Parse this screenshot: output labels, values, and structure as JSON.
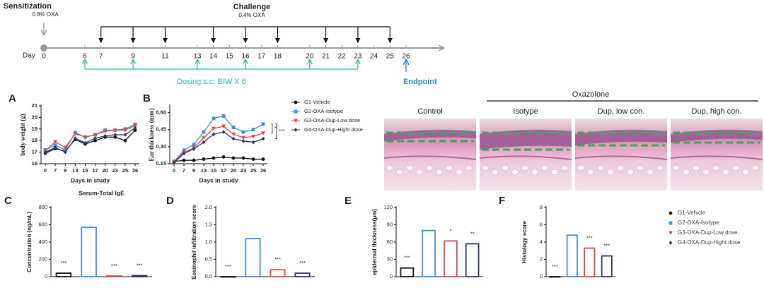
{
  "timeline": {
    "sensitization": "Sensitization",
    "sensitization_dose": "0.8% OXA",
    "challenge": "Challenge",
    "challenge_dose": "0.4% OXA",
    "day_label": "Day",
    "days": [
      0,
      6,
      7,
      9,
      11,
      13,
      14,
      15,
      16,
      17,
      18,
      20,
      21,
      22,
      23,
      24,
      25,
      26
    ],
    "challenge_days": [
      7,
      9,
      11,
      14,
      16,
      18,
      21,
      23,
      25
    ],
    "dosing_days": [
      6,
      9,
      13,
      16,
      20,
      23
    ],
    "dosing_label": [
      "Dosing ",
      "s.c.",
      " BIW  X 6"
    ],
    "endpoint_day": 26,
    "endpoint": "Endpoint"
  },
  "histology": {
    "group": "Oxazolone",
    "labels": [
      "Control",
      "Isotype",
      "Dup, low con.",
      "Dup, high con."
    ]
  },
  "chart_data": [
    {
      "type": "line",
      "panel": "A",
      "y_label": "body weight (g)",
      "x_label": "Days in study",
      "categories": [
        0,
        7,
        9,
        13,
        15,
        17,
        20,
        23,
        25,
        26
      ],
      "ylim": [
        16,
        21
      ],
      "yticks": [
        16,
        17,
        18,
        19,
        20,
        21
      ],
      "series": [
        {
          "color": "#111111",
          "values": [
            16.9,
            17.3,
            17.1,
            18.1,
            17.7,
            18.0,
            18.3,
            18.3,
            18.0,
            18.9
          ]
        },
        {
          "color": "#3a8fde",
          "values": [
            17.2,
            17.6,
            17.2,
            18.7,
            18.3,
            18.5,
            18.9,
            18.9,
            19.0,
            19.4
          ]
        },
        {
          "color": "#e0474c",
          "values": [
            17.1,
            17.9,
            17.4,
            18.6,
            18.3,
            18.5,
            18.8,
            18.9,
            18.9,
            19.3
          ]
        },
        {
          "color": "#2e3566",
          "values": [
            17.0,
            17.4,
            17.0,
            18.2,
            17.8,
            18.2,
            18.4,
            18.5,
            18.5,
            19.1
          ]
        }
      ]
    },
    {
      "type": "line",
      "panel": "B",
      "y_label": "Ear thickness (mm)",
      "x_label": "Days in study",
      "categories": [
        0,
        7,
        9,
        13,
        15,
        17,
        20,
        23,
        25,
        26
      ],
      "ylim": [
        0.15,
        0.66
      ],
      "yticks": [
        {
          "value": 0.15,
          "label": "0.15"
        },
        {
          "value": 0.3,
          "label": "0.30"
        },
        {
          "value": 0.45,
          "label": "0.45"
        },
        {
          "value": 0.6,
          "label": "0.60"
        }
      ],
      "annotations": [
        "*",
        "***"
      ],
      "series": [
        {
          "name": "G1-Vehicle",
          "color": "#111111",
          "values": [
            0.17,
            0.18,
            0.18,
            0.19,
            0.2,
            0.21,
            0.2,
            0.2,
            0.19,
            0.19
          ]
        },
        {
          "name": "G2-OXA-Isotype",
          "color": "#3a8fde",
          "values": [
            0.17,
            0.27,
            0.32,
            0.43,
            0.55,
            0.57,
            0.47,
            0.43,
            0.45,
            0.5
          ]
        },
        {
          "name": "G3-OXA-Dup-Low dose",
          "color": "#e0474c",
          "values": [
            0.17,
            0.25,
            0.29,
            0.38,
            0.46,
            0.48,
            0.41,
            0.38,
            0.39,
            0.42
          ]
        },
        {
          "name": "G4-OXA-Dup-Hight dose",
          "color": "#2e3566",
          "values": [
            0.16,
            0.24,
            0.28,
            0.34,
            0.41,
            0.43,
            0.37,
            0.35,
            0.34,
            0.37
          ]
        }
      ]
    },
    {
      "type": "bar",
      "panel": "C",
      "title": "Serum-Total IgE",
      "y_label": "Concentration (ng/mL)",
      "values": [
        40,
        570,
        8,
        12
      ],
      "colors": [
        "#111111",
        "#3a8fde",
        "#e0474c",
        "#2e3566"
      ],
      "annotations": [
        "***",
        null,
        "***",
        "***"
      ],
      "ylim": [
        0,
        800
      ],
      "yticks": [
        0,
        200,
        400,
        600,
        800
      ]
    },
    {
      "type": "bar",
      "panel": "D",
      "y_label": "Eosinophil infiltration score",
      "values": [
        0,
        1.1,
        0.2,
        0.1
      ],
      "colors": [
        "#111111",
        "#3a8fde",
        "#e0474c",
        "#2e3566"
      ],
      "annotations": [
        "***",
        null,
        "***",
        "***"
      ],
      "ylim": [
        0,
        2
      ],
      "yticks": [
        {
          "value": 0,
          "label": "0.0"
        },
        {
          "value": 0.5,
          "label": "0.5"
        },
        {
          "value": 1,
          "label": "1.0"
        },
        {
          "value": 1.5,
          "label": "1.5"
        },
        {
          "value": 2,
          "label": "2.0"
        }
      ]
    },
    {
      "type": "bar",
      "panel": "E",
      "y_label": "epidermal thickness(μm)",
      "values": [
        15,
        80,
        62,
        57
      ],
      "colors": [
        "#111111",
        "#3a8fde",
        "#e0474c",
        "#2e3566"
      ],
      "annotations": [
        "***",
        null,
        "*",
        "**"
      ],
      "ylim": [
        0,
        120
      ],
      "yticks": [
        0,
        30,
        60,
        90,
        120
      ]
    },
    {
      "type": "bar",
      "panel": "F",
      "y_label": "Histology score",
      "values": [
        0,
        4.8,
        3.3,
        2.4
      ],
      "colors": [
        "#111111",
        "#3a8fde",
        "#e0474c",
        "#2e3566"
      ],
      "annotations": [
        "***",
        null,
        "***",
        "***"
      ],
      "legend": [
        "G1-Vehicle",
        "G2-OXA-Isotype",
        "G3-OXA-Dup-Low dose",
        "G4-OXA-Dup-Hight dose"
      ],
      "ylim": [
        0,
        8
      ],
      "yticks": [
        0,
        2,
        4,
        6,
        8
      ]
    }
  ]
}
